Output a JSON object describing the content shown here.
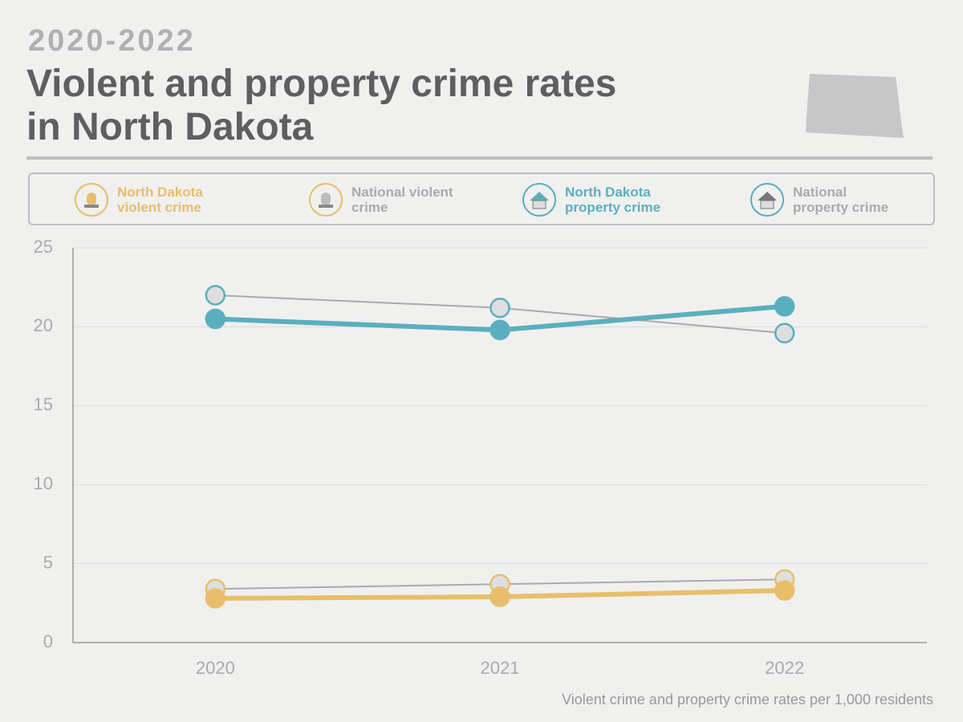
{
  "chart_data": {
    "type": "line",
    "subtitle": "2020-2022",
    "title": "Violent and property crime rates in North Dakota",
    "footnote": "Violent crime and property crime rates per 1,000 residents",
    "categories": [
      "2020",
      "2021",
      "2022"
    ],
    "series": [
      {
        "name": "North Dakota violent crime",
        "color": "#e8be6a",
        "values": [
          2.8,
          2.9,
          3.3
        ]
      },
      {
        "name": "National violent crime",
        "color": "#aaaaaa",
        "marker_edge": "#e8be6a",
        "values": [
          3.4,
          3.7,
          4.0
        ]
      },
      {
        "name": "North Dakota property crime",
        "color": "#5aafbf",
        "values": [
          20.5,
          19.8,
          21.3
        ]
      },
      {
        "name": "National property crime",
        "color": "#aaaaaa",
        "marker_edge": "#5aafbf",
        "values": [
          22.0,
          21.2,
          19.6
        ]
      }
    ],
    "ylim": [
      0,
      25
    ],
    "yticks": [
      0,
      5,
      10,
      15,
      20,
      25
    ],
    "grid": true
  }
}
